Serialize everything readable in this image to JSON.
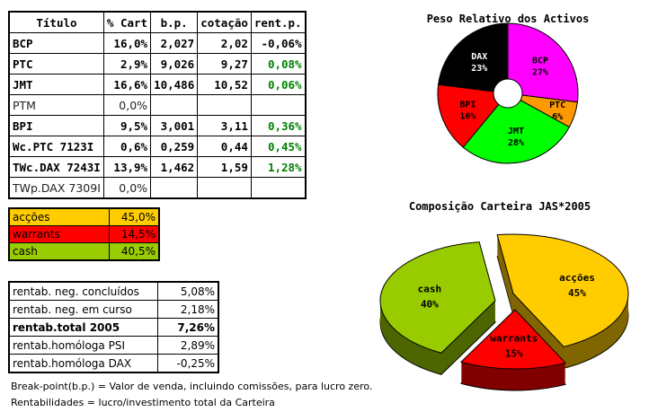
{
  "table": {
    "headers": [
      "Título",
      "% Cart",
      "b.p.",
      "cotação",
      "rent.p."
    ],
    "rows": [
      {
        "cells": [
          "BCP",
          "16,0%",
          "2,027",
          "2,02",
          "-0,06%"
        ],
        "bold": true,
        "pos": false
      },
      {
        "cells": [
          "PTC",
          "2,9%",
          "9,026",
          "9,27",
          "0,08%"
        ],
        "bold": true,
        "pos": true
      },
      {
        "cells": [
          "JMT",
          "16,6%",
          "10,486",
          "10,52",
          "0,06%"
        ],
        "bold": true,
        "pos": true
      },
      {
        "cells": [
          "PTM",
          "0,0%",
          "",
          "",
          ""
        ],
        "bold": false,
        "pos": false
      },
      {
        "cells": [
          "BPI",
          "9,5%",
          "3,001",
          "3,11",
          "0,36%"
        ],
        "bold": true,
        "pos": true
      },
      {
        "cells": [
          "Wc.PTC 7123I",
          "0,6%",
          "0,259",
          "0,44",
          "0,45%"
        ],
        "bold": true,
        "pos": true
      },
      {
        "cells": [
          "TWc.DAX 7243I",
          "13,9%",
          "1,462",
          "1,59",
          "1,28%"
        ],
        "bold": true,
        "pos": true
      },
      {
        "cells": [
          "TWp.DAX 7309I",
          "0,0%",
          "",
          "",
          ""
        ],
        "bold": false,
        "pos": false
      }
    ]
  },
  "allocation": [
    {
      "label": "acções",
      "value": "45,0%",
      "color": "#ffcc00"
    },
    {
      "label": "warrants",
      "value": "14,5%",
      "color": "#ff0000"
    },
    {
      "label": "cash",
      "value": "40,5%",
      "color": "#99cc00"
    }
  ],
  "returns": [
    {
      "label": "rentab. neg. concluídos",
      "value": "5,08%",
      "bold": false
    },
    {
      "label": "rentab. neg. em curso",
      "value": "2,18%",
      "bold": false
    },
    {
      "label": "rentab.total 2005",
      "value": "7,26%",
      "bold": true
    },
    {
      "label": "rentab.homóloga PSI",
      "value": "2,89%",
      "bold": false
    },
    {
      "label": "rentab.homóloga DAX",
      "value": "-0,25%",
      "bold": false
    }
  ],
  "notes": [
    "Break-point(b.p.) = Valor de venda, incluindo comissões, para lucro zero.",
    "Rentabilidades = lucro/investimento total da Carteira"
  ],
  "chart_data": [
    {
      "type": "pie",
      "title": "Peso Relativo dos Activos",
      "donut": true,
      "slices": [
        {
          "label": "BCP",
          "value": 27,
          "color": "#ff00ff"
        },
        {
          "label": "PTC",
          "value": 6,
          "color": "#ff9900"
        },
        {
          "label": "JMT",
          "value": 28,
          "color": "#00ff00"
        },
        {
          "label": "BPI",
          "value": 16,
          "color": "#ff0000"
        },
        {
          "label": "DAX",
          "value": 23,
          "color": "#000000"
        }
      ]
    },
    {
      "type": "pie",
      "title": "Composição Carteira JAS*2005",
      "3d": true,
      "slices": [
        {
          "label": "acções",
          "value": 45,
          "color": "#ffcc00"
        },
        {
          "label": "warrants",
          "value": 15,
          "color": "#ff0000"
        },
        {
          "label": "cash",
          "value": 40,
          "color": "#99cc00"
        }
      ]
    }
  ]
}
